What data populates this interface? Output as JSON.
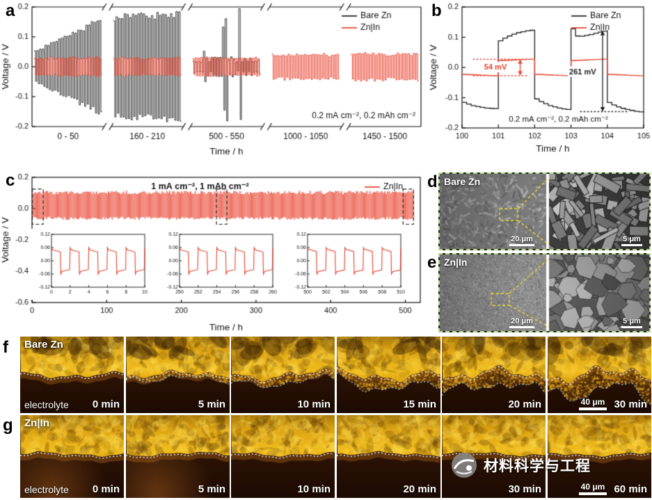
{
  "panels": {
    "a": {
      "letter": "a"
    },
    "b": {
      "letter": "b"
    },
    "c": {
      "letter": "c"
    },
    "d": {
      "letter": "d",
      "label": "Bare Zn",
      "scale_left": "20 μm",
      "scale_right": "5 μm"
    },
    "e": {
      "letter": "e",
      "label": "Zn|In",
      "scale_left": "20 μm",
      "scale_right": "5 μm"
    },
    "f": {
      "letter": "f",
      "label": "Bare Zn",
      "electrolyte": "electrolyte",
      "scale": "40 μm",
      "frames": [
        "0 min",
        "5 min",
        "10 min",
        "15 min",
        "20 min",
        "30 min"
      ]
    },
    "g": {
      "letter": "g",
      "label": "Zn|In",
      "electrolyte": "electrolyte",
      "scale": "40 μm",
      "frames": [
        "0 min",
        "5 min",
        "10 min",
        "20 min",
        "30 min",
        "60 min"
      ]
    }
  },
  "watermark": {
    "text": "材料科学与工程"
  },
  "colors": {
    "bare_zn": "#1a1a1a",
    "znin": "#e8402c",
    "sem_border": "#b6d98e",
    "zoom_box": "#ece22f"
  },
  "chart_data": [
    {
      "id": "a",
      "type": "line",
      "xlabel": "Time / h",
      "ylabel": "Voltage / V",
      "ylim": [
        -0.2,
        0.2
      ],
      "yticks": [
        0.2,
        0.1,
        0,
        -0.1,
        -0.2
      ],
      "annotation": "0.2 mA cm⁻², 0.2 mAh cm⁻²",
      "legend": [
        {
          "label": "Bare Zn",
          "color": "#1a1a1a"
        },
        {
          "label": "Zn|In",
          "color": "#e8402c"
        }
      ],
      "cycle_period_h": 2,
      "segments": [
        {
          "label": "0 - 50",
          "bz": [
            0.05,
            0.16
          ],
          "spikes": false,
          "rz": 0.028
        },
        {
          "label": "160 - 210",
          "bz": [
            0.165,
            0.175
          ],
          "spikes": false,
          "rz": 0.028
        },
        {
          "label": "500 - 550",
          "bz": [
            0.02,
            0.02
          ],
          "spikes": true,
          "rz": 0.028
        },
        {
          "label": "1000 - 1050",
          "bz": null,
          "spikes": false,
          "rz": 0.038
        },
        {
          "label": "1450 - 1500",
          "bz": null,
          "spikes": false,
          "rz": 0.041
        }
      ]
    },
    {
      "id": "b",
      "type": "line",
      "xlabel": "Time / h",
      "ylabel": "Voltage / V",
      "xlim": [
        100,
        105
      ],
      "xticks": [
        100,
        101,
        102,
        103,
        104,
        105
      ],
      "ylim": [
        -0.2,
        0.2
      ],
      "yticks": [
        0.2,
        0.1,
        0,
        -0.1,
        -0.2
      ],
      "caption": "0.2 mA cm⁻², 0.2 mAh cm⁻²",
      "legend": [
        {
          "label": "Bare Zn",
          "color": "#1a1a1a"
        },
        {
          "label": "Zn|In",
          "color": "#e8402c"
        }
      ],
      "znin_amp": 0.027,
      "bare_zn_halfcycles": [
        {
          "t0": 100,
          "v": [
            -0.115,
            -0.121,
            -0.126,
            -0.129,
            -0.132,
            -0.134,
            -0.135,
            -0.136,
            -0.136
          ]
        },
        {
          "t0": 101,
          "v": [
            0.088,
            0.097,
            0.104,
            0.11,
            0.115,
            0.118,
            0.121,
            0.123,
            0.124
          ]
        },
        {
          "t0": 102,
          "v": [
            -0.104,
            -0.113,
            -0.12,
            -0.126,
            -0.13,
            -0.134,
            -0.137,
            -0.139,
            -0.141
          ]
        },
        {
          "t0": 103,
          "v": [
            0.128,
            0.104,
            0.103,
            0.106,
            0.109,
            0.113,
            0.117,
            0.12,
            0.123
          ]
        },
        {
          "t0": 104,
          "v": [
            -0.116,
            -0.124,
            -0.13,
            -0.135,
            -0.139,
            -0.142,
            -0.145,
            -0.147,
            -0.148
          ]
        }
      ],
      "annotations": [
        {
          "text": "54 mV",
          "color": "#e8402c",
          "y_span": [
            0.027,
            -0.027
          ],
          "x_arrow": 101.6,
          "x_dotted": [
            100.3,
            101.8
          ],
          "x_text": 100.92,
          "text_y": 0,
          "dotted": "both"
        },
        {
          "text": "261 mV",
          "color": "#1a1a1a",
          "y_span": [
            0.121,
            -0.146
          ],
          "x_arrow": 103.87,
          "x_dotted": [
            103.25,
            104.6
          ],
          "x_text": 103.32,
          "text_y": -0.015,
          "dotted": "bottom"
        }
      ]
    },
    {
      "id": "c",
      "type": "line",
      "xlabel": "Time / h",
      "ylabel": "Voltage / V",
      "xlim": [
        0,
        520
      ],
      "xticks": [
        0,
        100,
        200,
        300,
        400,
        500
      ],
      "ylim": [
        -0.6,
        0.2
      ],
      "yticks": [
        0.2,
        0,
        -0.2,
        -0.4,
        -0.6
      ],
      "annotation": "1 mA cm⁻², 1 mAh cm⁻²",
      "legend": [
        {
          "label": "Zn|In",
          "color": "#e8402c"
        }
      ],
      "wave": {
        "t_end": 512,
        "period_h": 2,
        "v_top": 0.1,
        "v_bottom": -0.06
      },
      "zoom_boxes": [
        [
          0.5,
          15
        ],
        [
          247,
          261
        ],
        [
          497,
          511
        ]
      ],
      "insets": [
        {
          "xlim": [
            0,
            10
          ],
          "xticks": [
            0,
            2,
            4,
            6,
            8,
            10
          ],
          "ylim": [
            -0.12,
            0.12
          ],
          "yticks": [
            0.12,
            0.06,
            0,
            -0.06,
            -0.12
          ],
          "amp": 0.046
        },
        {
          "xlim": [
            250,
            260
          ],
          "xticks": [
            250,
            252,
            254,
            256,
            258,
            260
          ],
          "ylim": [
            -0.12,
            0.12
          ],
          "yticks": [
            0.12,
            0.06,
            0,
            -0.06,
            -0.12
          ],
          "amp": 0.046
        },
        {
          "xlim": [
            500,
            510
          ],
          "xticks": [
            500,
            502,
            504,
            506,
            508,
            510
          ],
          "ylim": [
            -0.12,
            0.12
          ],
          "yticks": [
            0.12,
            0.06,
            0,
            -0.06,
            -0.12
          ],
          "amp": 0.048
        }
      ]
    }
  ]
}
